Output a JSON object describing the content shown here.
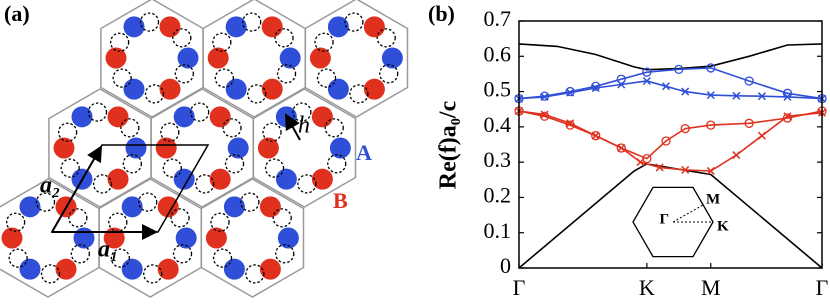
{
  "panel_a": {
    "label": "(a)",
    "a1": "a₁",
    "a2": "a₂",
    "h": "h",
    "A": "A",
    "B": "B"
  },
  "chart_data": {
    "type": "line",
    "panel_label": "(b)",
    "ylabel": "Re(f)a₀/c",
    "xlim": [
      0,
      2.37
    ],
    "ylim": [
      0,
      0.7
    ],
    "xticks": [
      {
        "value": 0,
        "label": "Γ"
      },
      {
        "value": 1,
        "label": "K"
      },
      {
        "value": 1.5,
        "label": "M"
      },
      {
        "value": 2.37,
        "label": "Γ"
      }
    ],
    "yticks": [
      0,
      0.1,
      0.2,
      0.3,
      0.4,
      0.5,
      0.6,
      0.7
    ],
    "inset_labels": [
      "Γ",
      "M",
      "K"
    ],
    "series": [
      {
        "color": "#000000",
        "marker": "none",
        "x": [
          0,
          0.3,
          0.6,
          0.9,
          1.0,
          1.25,
          1.5,
          1.8,
          2.1,
          2.37
        ],
        "values": [
          0.635,
          0.628,
          0.605,
          0.57,
          0.562,
          0.565,
          0.572,
          0.6,
          0.632,
          0.635
        ]
      },
      {
        "color": "#000000",
        "marker": "none",
        "x": [
          0,
          0.9,
          1.0,
          1.5,
          2.37
        ],
        "values": [
          0,
          0.275,
          0.295,
          0.265,
          0
        ]
      },
      {
        "color": "#2f4fd8",
        "marker": "o",
        "x": [
          0,
          0.2,
          0.4,
          0.6,
          0.8,
          1.0,
          1.25,
          1.5,
          1.8,
          2.1,
          2.37
        ],
        "values": [
          0.48,
          0.487,
          0.5,
          0.515,
          0.535,
          0.555,
          0.563,
          0.567,
          0.53,
          0.495,
          0.48
        ]
      },
      {
        "color": "#2f4fd8",
        "marker": "x",
        "x": [
          0,
          0.2,
          0.4,
          0.6,
          0.8,
          1.0,
          1.15,
          1.3,
          1.5,
          1.7,
          1.9,
          2.1,
          2.37
        ],
        "values": [
          0.48,
          0.485,
          0.497,
          0.51,
          0.52,
          0.53,
          0.515,
          0.5,
          0.49,
          0.488,
          0.487,
          0.485,
          0.48
        ]
      },
      {
        "color": "#e0301e",
        "marker": "o",
        "x": [
          0,
          0.2,
          0.4,
          0.6,
          0.8,
          1.0,
          1.15,
          1.3,
          1.5,
          1.8,
          2.1,
          2.37
        ],
        "values": [
          0.445,
          0.43,
          0.405,
          0.375,
          0.34,
          0.31,
          0.36,
          0.395,
          0.405,
          0.41,
          0.425,
          0.445
        ]
      },
      {
        "color": "#e0301e",
        "marker": "x",
        "x": [
          0,
          0.2,
          0.4,
          0.6,
          0.8,
          0.95,
          1.1,
          1.3,
          1.5,
          1.7,
          1.9,
          2.1,
          2.37
        ],
        "values": [
          0.445,
          0.435,
          0.41,
          0.375,
          0.34,
          0.3,
          0.285,
          0.278,
          0.275,
          0.32,
          0.375,
          0.43,
          0.44
        ]
      }
    ]
  }
}
